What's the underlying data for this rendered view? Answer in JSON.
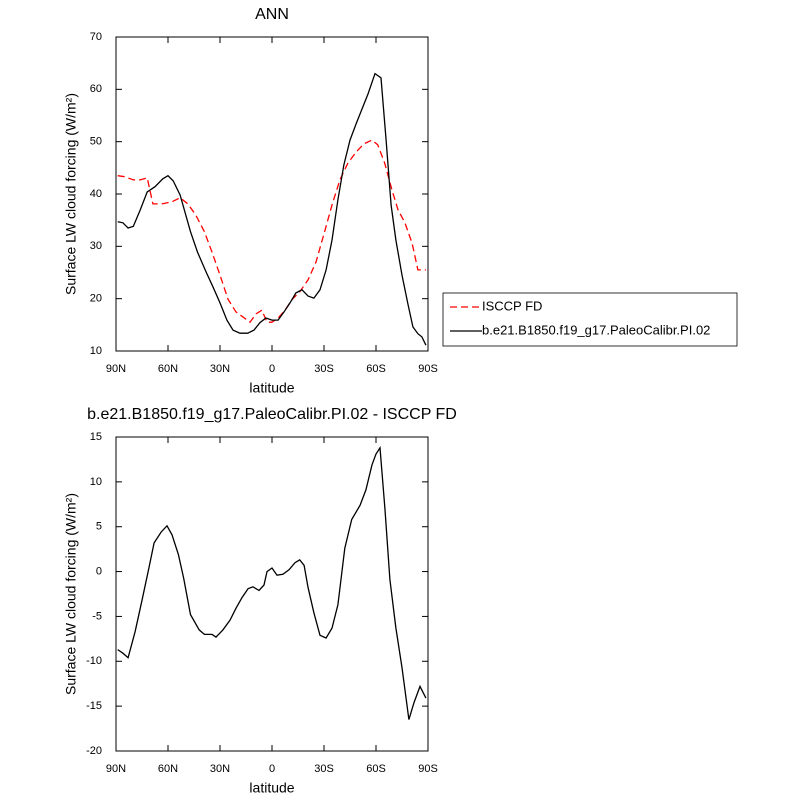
{
  "chart_data": [
    {
      "type": "line",
      "title": "ANN",
      "xlabel": "latitude",
      "ylabel": "Surface LW cloud forcing (W/m²)",
      "xlim": [
        90,
        -90
      ],
      "ylim": [
        10,
        70
      ],
      "xticks": [
        {
          "value": 90,
          "label": "90N"
        },
        {
          "value": 60,
          "label": "60N"
        },
        {
          "value": 30,
          "label": "30N"
        },
        0,
        {
          "value": -30,
          "label": "30S"
        },
        {
          "value": -60,
          "label": "60S"
        },
        {
          "value": -90,
          "label": "90S"
        }
      ],
      "yticks": [
        10,
        20,
        30,
        40,
        50,
        60,
        70
      ],
      "legend_position": "outside-right",
      "series": [
        {
          "name": "ISCCP FD",
          "color": "#ff0000",
          "dash": true,
          "x": [
            89,
            85,
            80,
            76,
            72,
            68.7,
            63.5,
            57.7,
            53,
            48.5,
            44,
            39,
            34.6,
            30,
            25.4,
            20.8,
            16,
            12.7,
            9.2,
            5.8,
            2.9,
            0,
            -3.5,
            -7.5,
            -11.5,
            -16,
            -20.8,
            -25.4,
            -30,
            -34.6,
            -39.2,
            -43.8,
            -48.5,
            -53,
            -57.7,
            -61,
            -65,
            -69.2,
            -72.7,
            -76.7,
            -80.8,
            -84.2,
            -88.8
          ],
          "values": [
            43.5,
            43.3,
            42.7,
            42.7,
            43.1,
            38.1,
            38.1,
            38.5,
            39.3,
            38.1,
            36.0,
            32.8,
            28.9,
            24.5,
            19.9,
            17.5,
            16.3,
            15.5,
            17.1,
            17.8,
            15.5,
            15.5,
            16.3,
            17.8,
            19.8,
            21.3,
            23.6,
            27.0,
            32.4,
            37.9,
            42.7,
            45.9,
            48.0,
            49.6,
            50.3,
            49.4,
            45.9,
            40.8,
            37.0,
            34.5,
            30.6,
            25.5,
            25.5
          ]
        },
        {
          "name": "b.e21.B1850.f19_g17.PaleoCalibr.PI.02",
          "color": "#000000",
          "dash": false,
          "x": [
            89,
            86,
            83,
            80,
            76,
            72,
            67.5,
            63,
            60,
            57,
            53,
            47,
            43,
            38,
            34,
            30,
            26,
            22.5,
            18.5,
            14,
            10.4,
            7,
            3.5,
            0,
            -3.5,
            -7,
            -10.4,
            -13.8,
            -17.3,
            -20.8,
            -24.2,
            -27.7,
            -31.2,
            -34.6,
            -38,
            -41.5,
            -45,
            -48.5,
            -52,
            -55.4,
            -59.4,
            -62.9,
            -65.8,
            -68.7,
            -71.5,
            -75,
            -78.5,
            -81.3,
            -84.2,
            -86.5,
            -88.8
          ],
          "values": [
            34.7,
            34.5,
            33.5,
            33.8,
            37,
            40.4,
            41.4,
            42.9,
            43.5,
            42.5,
            39.8,
            32.8,
            28.9,
            25.1,
            22.2,
            19.2,
            15.9,
            14.0,
            13.4,
            13.4,
            14.0,
            15.4,
            16.3,
            15.9,
            15.9,
            17.5,
            19.2,
            21.1,
            21.7,
            20.5,
            20.1,
            21.7,
            25.5,
            31.2,
            38.9,
            45.6,
            50.3,
            53.4,
            56.3,
            59.1,
            63.0,
            62.2,
            50.3,
            37.9,
            31.2,
            24.5,
            18.8,
            14.6,
            13.3,
            12.7,
            11.1
          ]
        }
      ]
    },
    {
      "type": "line",
      "title": "b.e21.B1850.f19_g17.PaleoCalibr.PI.02 - ISCCP FD",
      "xlabel": "latitude",
      "ylabel": "Surface LW cloud forcing (W/m²)",
      "xlim": [
        90,
        -90
      ],
      "ylim": [
        -20,
        15
      ],
      "xticks": [
        {
          "value": 90,
          "label": "90N"
        },
        {
          "value": 60,
          "label": "60N"
        },
        {
          "value": 30,
          "label": "30N"
        },
        0,
        {
          "value": -30,
          "label": "30S"
        },
        {
          "value": -60,
          "label": "60S"
        },
        {
          "value": -90,
          "label": "90S"
        }
      ],
      "yticks": [
        -20,
        -15,
        -10,
        -5,
        0,
        5,
        10,
        15
      ],
      "series": [
        {
          "color": "#000000",
          "dash": false,
          "x": [
            89,
            86,
            83,
            79,
            75,
            71,
            68,
            64,
            60.6,
            57.7,
            54,
            51,
            47,
            42,
            39,
            34.6,
            32.3,
            28.3,
            24.2,
            20.8,
            17.3,
            13.8,
            11,
            7.5,
            4.6,
            2.9,
            0,
            -2.9,
            -6.3,
            -9.8,
            -13.3,
            -16,
            -18.5,
            -20.8,
            -24.2,
            -27.7,
            -31.2,
            -34.6,
            -38,
            -42,
            -46,
            -50.8,
            -54.2,
            -57.7,
            -60,
            -62.3,
            -65.2,
            -68,
            -71.5,
            -75,
            -79,
            -81.9,
            -85.4,
            -88.8
          ],
          "values": [
            -8.7,
            -9.1,
            -9.6,
            -6.7,
            -3.2,
            0.4,
            3.2,
            4.4,
            5.1,
            4.1,
            1.9,
            -0.7,
            -4.8,
            -6.5,
            -7.0,
            -7.0,
            -7.3,
            -6.5,
            -5.4,
            -4.1,
            -2.9,
            -1.9,
            -1.7,
            -2.1,
            -1.5,
            0.0,
            0.4,
            -0.4,
            -0.3,
            0.2,
            1.0,
            1.3,
            0.7,
            -1.8,
            -4.6,
            -7.1,
            -7.4,
            -6.3,
            -3.7,
            2.6,
            5.8,
            7.4,
            9.1,
            11.9,
            13.1,
            13.8,
            6.9,
            -0.9,
            -6.3,
            -10.7,
            -16.5,
            -14.6,
            -12.8,
            -14.1
          ]
        }
      ]
    }
  ]
}
